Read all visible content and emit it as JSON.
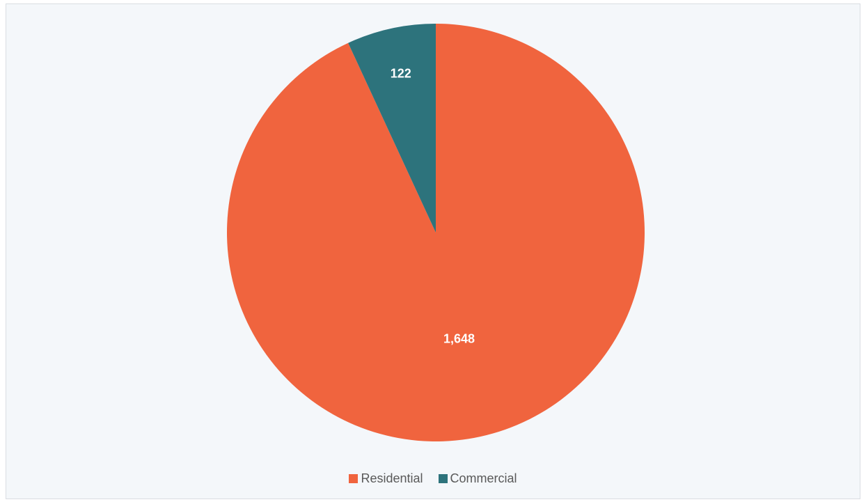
{
  "chart_data": {
    "type": "pie",
    "title": "",
    "categories": [
      "Residential",
      "Commercial"
    ],
    "values": [
      1648,
      122
    ],
    "value_labels": [
      "1,648",
      "122"
    ],
    "colors": [
      "#f0643e",
      "#2d737c"
    ],
    "legend_position": "bottom"
  },
  "legend": {
    "items": [
      {
        "label": "Residential",
        "color": "#f0643e"
      },
      {
        "label": "Commercial",
        "color": "#2d737c"
      }
    ]
  }
}
